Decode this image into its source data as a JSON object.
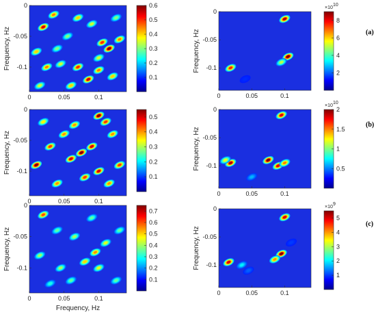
{
  "chart_data": [
    {
      "id": "a-left",
      "row": "a",
      "type": "heatmap",
      "xlabel": "",
      "ylabel": "Frequency, Hz",
      "xticks": [
        "0",
        "0.05",
        "0.1"
      ],
      "yticks": [
        "0",
        "-0.05",
        "-0.1"
      ],
      "cbar": {
        "ticks": [
          "0.6",
          "0.5",
          "0.4",
          "0.3",
          "0.2",
          "0.1"
        ],
        "multiplier": ""
      },
      "zrange": [
        0,
        0.6
      ],
      "xrange": [
        0,
        0.14
      ],
      "yrange": [
        -0.14,
        0
      ],
      "peaks": [
        [
          0.02,
          -0.035,
          0.55
        ],
        [
          0.035,
          -0.015,
          0.45
        ],
        [
          0.07,
          -0.02,
          0.4
        ],
        [
          0.09,
          -0.03,
          0.35
        ],
        [
          0.105,
          -0.06,
          0.5
        ],
        [
          0.115,
          -0.07,
          0.6
        ],
        [
          0.13,
          -0.055,
          0.45
        ],
        [
          0.01,
          -0.075,
          0.4
        ],
        [
          0.025,
          -0.1,
          0.45
        ],
        [
          0.045,
          -0.095,
          0.35
        ],
        [
          0.07,
          -0.1,
          0.5
        ],
        [
          0.085,
          -0.12,
          0.55
        ],
        [
          0.1,
          -0.105,
          0.45
        ],
        [
          0.12,
          -0.115,
          0.4
        ],
        [
          0.055,
          -0.05,
          0.3
        ],
        [
          0.015,
          -0.13,
          0.35
        ],
        [
          0.06,
          -0.13,
          0.4
        ],
        [
          0.125,
          -0.02,
          0.3
        ],
        [
          0.04,
          -0.07,
          0.3
        ],
        [
          0.1,
          -0.085,
          0.35
        ]
      ]
    },
    {
      "id": "a-right",
      "row": "a",
      "type": "heatmap",
      "xlabel": "",
      "ylabel": "Frequency, Hz",
      "xticks": [
        "0",
        "0.05",
        "0.1"
      ],
      "yticks": [
        "0",
        "-0.05",
        "-0.1"
      ],
      "cbar": {
        "ticks": [
          "8",
          "6",
          "4",
          "2"
        ],
        "multiplier": "×10",
        "exponent": "10"
      },
      "zrange": [
        0,
        9
      ],
      "xrange": [
        0,
        0.14
      ],
      "yrange": [
        -0.14,
        0
      ],
      "peaks": [
        [
          0.1,
          -0.013,
          8.5
        ],
        [
          0.105,
          -0.08,
          9
        ],
        [
          0.095,
          -0.09,
          5
        ],
        [
          0.018,
          -0.1,
          7.5
        ],
        [
          0.04,
          -0.12,
          1.5
        ]
      ]
    },
    {
      "id": "b-left",
      "row": "b",
      "type": "heatmap",
      "xlabel": "",
      "ylabel": "Frequency, Hz",
      "xticks": [
        "0",
        "0.05",
        "0.1"
      ],
      "yticks": [
        "0",
        "-0.05",
        "-0.1"
      ],
      "cbar": {
        "ticks": [
          "0.5",
          "0.4",
          "0.3",
          "0.2",
          "0.1"
        ],
        "multiplier": ""
      },
      "zrange": [
        0,
        0.55
      ],
      "xrange": [
        0,
        0.14
      ],
      "yrange": [
        -0.14,
        0
      ],
      "peaks": [
        [
          0.01,
          -0.09,
          0.55
        ],
        [
          0.03,
          -0.06,
          0.45
        ],
        [
          0.05,
          -0.04,
          0.4
        ],
        [
          0.06,
          -0.08,
          0.5
        ],
        [
          0.075,
          -0.07,
          0.55
        ],
        [
          0.09,
          -0.06,
          0.5
        ],
        [
          0.1,
          -0.01,
          0.55
        ],
        [
          0.11,
          -0.02,
          0.45
        ],
        [
          0.12,
          -0.04,
          0.4
        ],
        [
          0.13,
          -0.09,
          0.45
        ],
        [
          0.04,
          -0.12,
          0.4
        ],
        [
          0.08,
          -0.11,
          0.45
        ],
        [
          0.1,
          -0.1,
          0.5
        ],
        [
          0.02,
          -0.02,
          0.35
        ],
        [
          0.115,
          -0.12,
          0.4
        ],
        [
          0.065,
          -0.025,
          0.4
        ]
      ]
    },
    {
      "id": "b-right",
      "row": "b",
      "type": "heatmap",
      "xlabel": "",
      "ylabel": "Frequency, Hz",
      "xticks": [
        "0",
        "0.05",
        "0.1"
      ],
      "yticks": [
        "0",
        "-0.05",
        "-0.1"
      ],
      "cbar": {
        "ticks": [
          "2",
          "1.5",
          "1",
          "0.5"
        ],
        "multiplier": "×10",
        "exponent": "10"
      },
      "zrange": [
        0,
        2
      ],
      "xrange": [
        0,
        0.14
      ],
      "yrange": [
        -0.14,
        0
      ],
      "peaks": [
        [
          0.095,
          -0.01,
          1.8
        ],
        [
          0.075,
          -0.09,
          2
        ],
        [
          0.09,
          -0.1,
          1.8
        ],
        [
          0.1,
          -0.095,
          1.5
        ],
        [
          0.018,
          -0.095,
          1.9
        ],
        [
          0.01,
          -0.09,
          1.2
        ],
        [
          0.05,
          -0.12,
          0.6
        ]
      ]
    },
    {
      "id": "c-left",
      "row": "c",
      "type": "heatmap",
      "xlabel": "Frequency, Hz",
      "ylabel": "Frequency, Hz",
      "xticks": [
        "0",
        "0.05",
        "0.1"
      ],
      "yticks": [
        "0",
        "-0.05",
        "-0.1"
      ],
      "cbar": {
        "ticks": [
          "0.7",
          "0.6",
          "0.5",
          "0.4",
          "0.3",
          "0.2",
          "0.1"
        ],
        "multiplier": ""
      },
      "zrange": [
        0,
        0.75
      ],
      "xrange": [
        0,
        0.14
      ],
      "yrange": [
        -0.14,
        0
      ],
      "peaks": [
        [
          0.02,
          -0.015,
          0.6
        ],
        [
          0.04,
          -0.04,
          0.35
        ],
        [
          0.065,
          -0.05,
          0.4
        ],
        [
          0.09,
          -0.02,
          0.35
        ],
        [
          0.11,
          -0.06,
          0.45
        ],
        [
          0.13,
          -0.04,
          0.35
        ],
        [
          0.015,
          -0.08,
          0.4
        ],
        [
          0.045,
          -0.1,
          0.4
        ],
        [
          0.08,
          -0.09,
          0.5
        ],
        [
          0.1,
          -0.1,
          0.45
        ],
        [
          0.125,
          -0.12,
          0.35
        ],
        [
          0.03,
          -0.125,
          0.3
        ],
        [
          0.06,
          -0.12,
          0.35
        ],
        [
          0.095,
          -0.075,
          0.55
        ]
      ]
    },
    {
      "id": "c-right",
      "row": "c",
      "type": "heatmap",
      "xlabel": "",
      "ylabel": "Frequency, Hz",
      "xticks": [
        "0",
        "0.05",
        "0.1"
      ],
      "yticks": [
        "0",
        "-0.05",
        "-0.1"
      ],
      "cbar": {
        "ticks": [
          "5",
          "4",
          "3",
          "2",
          "1"
        ],
        "multiplier": "×10",
        "exponent": "9"
      },
      "zrange": [
        0,
        5.5
      ],
      "xrange": [
        0,
        0.14
      ],
      "yrange": [
        -0.14,
        0
      ],
      "peaks": [
        [
          0.1,
          -0.015,
          5
        ],
        [
          0.095,
          -0.08,
          5.5
        ],
        [
          0.085,
          -0.09,
          4
        ],
        [
          0.015,
          -0.095,
          5
        ],
        [
          0.035,
          -0.1,
          2
        ],
        [
          0.045,
          -0.11,
          1.2
        ],
        [
          0.11,
          -0.06,
          1
        ]
      ]
    }
  ],
  "row_labels": [
    "(a)",
    "(b)",
    "(c)"
  ]
}
